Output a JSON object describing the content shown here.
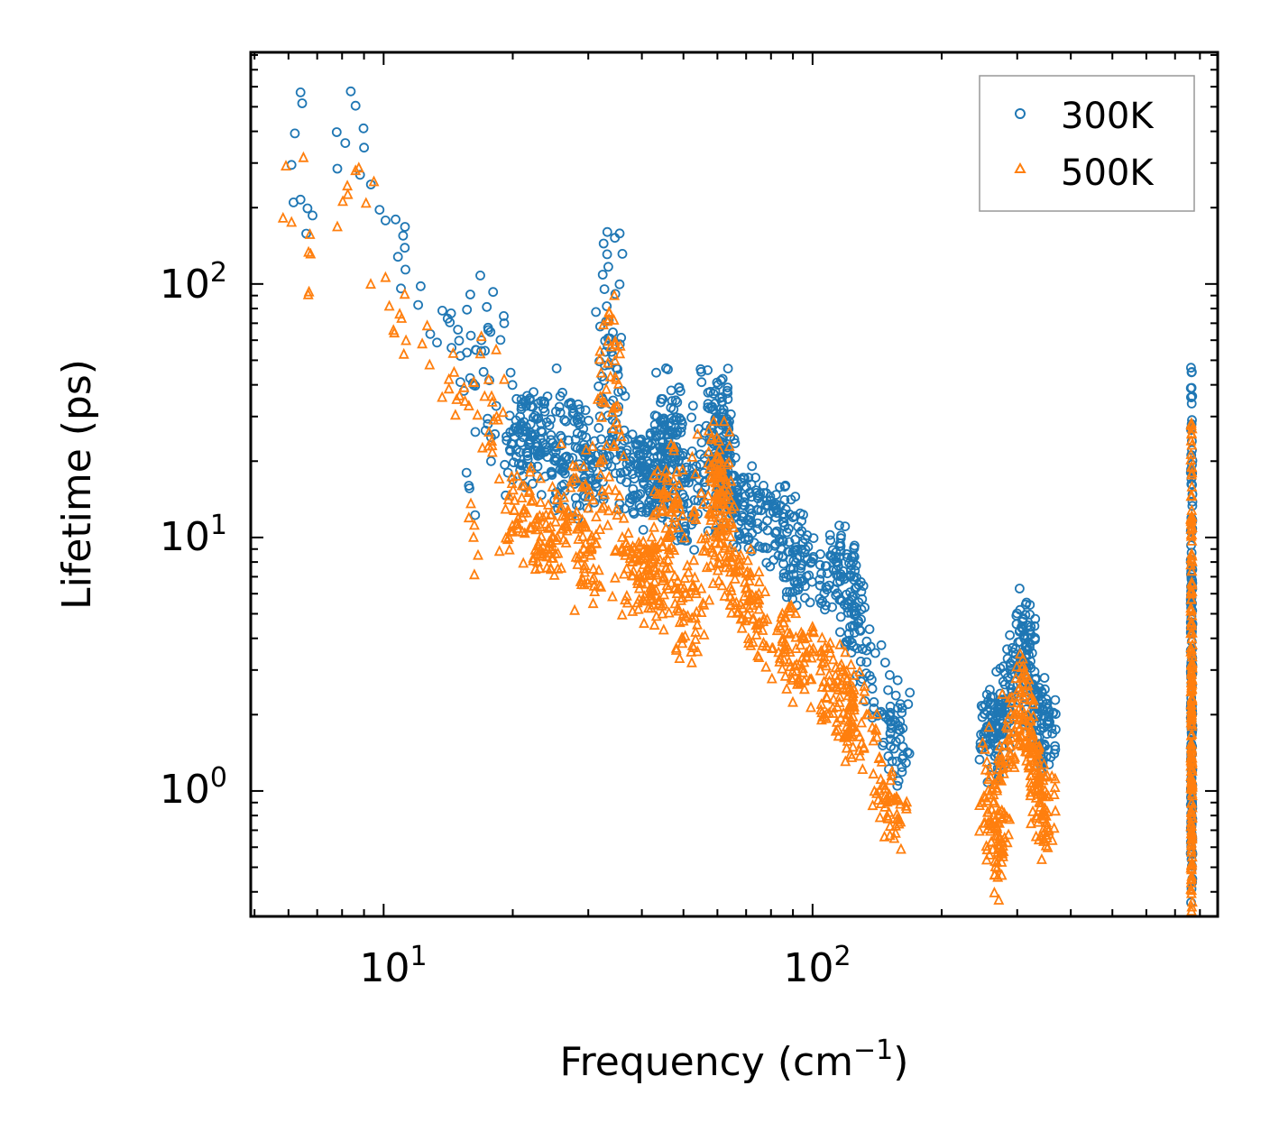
{
  "chart_data": {
    "type": "scatter",
    "title": "",
    "xlabel": "Frequency (cm",
    "xlabel_sup": "−1",
    "xlabel_end": ")",
    "ylabel": "Lifetime (ps)",
    "xscale": "log",
    "yscale": "log",
    "xlim": [
      4.9,
      880
    ],
    "ylim": [
      0.32,
      820
    ],
    "x_ticks": [
      {
        "value": 10,
        "base": "10",
        "exp": "1"
      },
      {
        "value": 100,
        "base": "10",
        "exp": "2"
      }
    ],
    "y_ticks": [
      {
        "value": 1,
        "base": "10",
        "exp": "0"
      },
      {
        "value": 10,
        "base": "10",
        "exp": "1"
      },
      {
        "value": 100,
        "base": "10",
        "exp": "2"
      }
    ],
    "legend_position": "top-right",
    "series": [
      {
        "name": "300K",
        "marker": "circle",
        "color": "#1f77b4",
        "points": [
          [
            6.1,
            295
          ],
          [
            6.4,
            570
          ],
          [
            6.6,
            158
          ],
          [
            7.8,
            285
          ],
          [
            8.6,
            505
          ],
          [
            9.0,
            345
          ],
          [
            10.1,
            178
          ],
          [
            10.8,
            128
          ],
          [
            11.1,
            155
          ],
          [
            12.2,
            98
          ],
          [
            14.1,
            73
          ],
          [
            14.4,
            56
          ],
          [
            14.9,
            66
          ],
          [
            15.1,
            52
          ],
          [
            15.6,
            18
          ],
          [
            15.8,
            16
          ],
          [
            16.2,
            40
          ],
          [
            16.4,
            55
          ],
          [
            16.8,
            108
          ],
          [
            16.9,
            60
          ],
          [
            17.1,
            45
          ],
          [
            17.5,
            28
          ],
          [
            17.8,
            20
          ],
          [
            18.0,
            93
          ],
          [
            18.3,
            33
          ],
          [
            19.1,
            70
          ],
          [
            19.5,
            18
          ],
          [
            20.2,
            25
          ],
          [
            20.8,
            30
          ],
          [
            21.5,
            33
          ],
          [
            22.0,
            28
          ],
          [
            22.6,
            22
          ],
          [
            23.4,
            26
          ],
          [
            24.1,
            36
          ],
          [
            25.2,
            20
          ],
          [
            26.3,
            19
          ],
          [
            27.3,
            34
          ],
          [
            28.4,
            30
          ],
          [
            29.1,
            22
          ],
          [
            30.2,
            18
          ],
          [
            31.0,
            24
          ],
          [
            32.5,
            19
          ],
          [
            33.5,
            72
          ],
          [
            34.2,
            25
          ],
          [
            34.6,
            152
          ],
          [
            36.1,
            21
          ],
          [
            37.5,
            19
          ],
          [
            39.0,
            22
          ],
          [
            41.2,
            20
          ],
          [
            42.5,
            22
          ],
          [
            45.3,
            16
          ],
          [
            46.8,
            38
          ],
          [
            47.5,
            29
          ],
          [
            50.2,
            17
          ],
          [
            55.1,
            15
          ],
          [
            60.2,
            40
          ],
          [
            60.9,
            32
          ],
          [
            62.4,
            23
          ],
          [
            63.0,
            21
          ],
          [
            68.0,
            17
          ],
          [
            74.0,
            15
          ],
          [
            82.0,
            13
          ],
          [
            90.0,
            12
          ],
          [
            95.0,
            9.5
          ],
          [
            110.0,
            8.5
          ],
          [
            120.0,
            8.6
          ],
          [
            125.0,
            6.8
          ],
          [
            130.0,
            5.2
          ],
          [
            140.0,
            3.5
          ],
          [
            150.0,
            2.5
          ],
          [
            155.0,
            1.9
          ],
          [
            160.0,
            1.6
          ],
          [
            255.0,
            2.4
          ],
          [
            262.0,
            1.8
          ],
          [
            270.0,
            2.1
          ],
          [
            278.0,
            1.7
          ],
          [
            285.0,
            2.8
          ],
          [
            300.0,
            3.0
          ],
          [
            310.0,
            4.8
          ],
          [
            318.0,
            4.5
          ],
          [
            325.0,
            3.5
          ],
          [
            335.0,
            2.4
          ],
          [
            345.0,
            2.1
          ],
          [
            355.0,
            1.9
          ],
          [
            765.0,
            28.0
          ],
          [
            765.0,
            10.5
          ],
          [
            765.0,
            5.8
          ],
          [
            765.0,
            3.6
          ],
          [
            765.0,
            2.9
          ],
          [
            765.0,
            1.7
          ],
          [
            765.0,
            1.3
          ],
          [
            765.0,
            0.68
          ]
        ]
      },
      {
        "name": "500K",
        "marker": "triangle",
        "color": "#ff7f0e",
        "points": [
          [
            6.1,
            175
          ],
          [
            6.5,
            315
          ],
          [
            6.7,
            93
          ],
          [
            7.8,
            168
          ],
          [
            8.6,
            280
          ],
          [
            9.1,
            208
          ],
          [
            10.1,
            106
          ],
          [
            10.9,
            76
          ],
          [
            11.2,
            91
          ],
          [
            12.3,
            58
          ],
          [
            14.2,
            42
          ],
          [
            14.8,
            35
          ],
          [
            15.4,
            39
          ],
          [
            15.8,
            33
          ],
          [
            16.2,
            10
          ],
          [
            16.6,
            8.5
          ],
          [
            16.9,
            62
          ],
          [
            17.2,
            36
          ],
          [
            17.6,
            26
          ],
          [
            17.9,
            23
          ],
          [
            18.3,
            55
          ],
          [
            18.6,
            17
          ],
          [
            19.1,
            42
          ],
          [
            19.6,
            10
          ],
          [
            20.2,
            14
          ],
          [
            21.0,
            16
          ],
          [
            22.3,
            14
          ],
          [
            23.5,
            12
          ],
          [
            24.5,
            11
          ],
          [
            25.4,
            10
          ],
          [
            26.8,
            11
          ],
          [
            28.1,
            19
          ],
          [
            29.3,
            9
          ],
          [
            30.4,
            8.5
          ],
          [
            31.2,
            9.5
          ],
          [
            33.1,
            23
          ],
          [
            33.8,
            43
          ],
          [
            34.5,
            90
          ],
          [
            36.0,
            10
          ],
          [
            38.0,
            8
          ],
          [
            40.5,
            9
          ],
          [
            42.5,
            8
          ],
          [
            45.0,
            7
          ],
          [
            47.5,
            22
          ],
          [
            50.5,
            6
          ],
          [
            55.5,
            5.5
          ],
          [
            60.5,
            24
          ],
          [
            61.3,
            19
          ],
          [
            62.5,
            13
          ],
          [
            68.0,
            8.5
          ],
          [
            75.0,
            6
          ],
          [
            85.0,
            5
          ],
          [
            95.0,
            4
          ],
          [
            110.0,
            3.5
          ],
          [
            118.0,
            3.0
          ],
          [
            125.0,
            2.5
          ],
          [
            135.0,
            2.0
          ],
          [
            145.0,
            1.3
          ],
          [
            152.0,
            1.1
          ],
          [
            158.0,
            0.92
          ],
          [
            255.0,
            1.3
          ],
          [
            262.0,
            1.0
          ],
          [
            270.0,
            0.75
          ],
          [
            278.0,
            0.55
          ],
          [
            285.0,
            1.6
          ],
          [
            300.0,
            2.0
          ],
          [
            310.0,
            2.8
          ],
          [
            318.0,
            2.6
          ],
          [
            325.0,
            1.7
          ],
          [
            335.0,
            1.3
          ],
          [
            345.0,
            1.1
          ],
          [
            355.0,
            0.95
          ],
          [
            765.0,
            19.0
          ],
          [
            765.0,
            8.6
          ],
          [
            765.0,
            4.5
          ],
          [
            765.0,
            2.6
          ],
          [
            765.0,
            2.0
          ],
          [
            765.0,
            1.3
          ],
          [
            765.0,
            0.9
          ],
          [
            765.0,
            0.45
          ]
        ]
      }
    ]
  }
}
